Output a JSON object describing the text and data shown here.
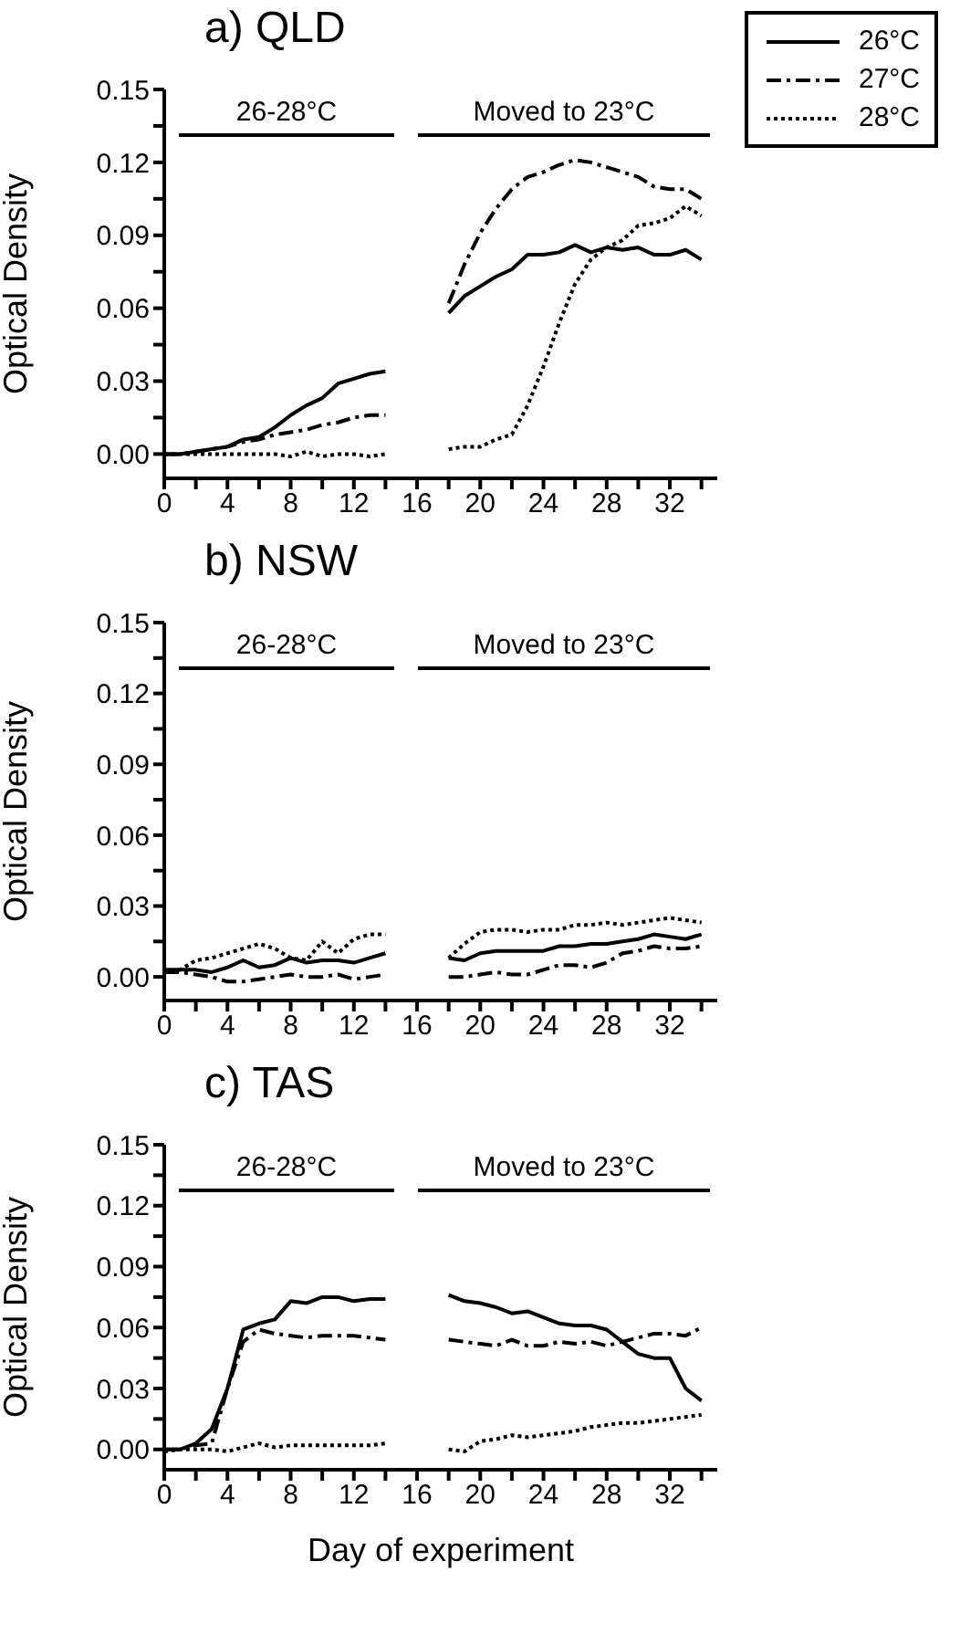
{
  "chart_data": [
    {
      "type": "line",
      "title": "a) QLD",
      "ylabel": "Optical Density",
      "legend": "top right",
      "xlim": [
        0,
        35
      ],
      "ylim": [
        -0.01,
        0.15
      ],
      "xticks": [
        0,
        {
          "value": 2,
          "label": null
        },
        4,
        {
          "value": 6,
          "label": null
        },
        8,
        {
          "value": 10,
          "label": null
        },
        12,
        {
          "value": 14,
          "label": null
        },
        16,
        {
          "value": 18,
          "label": null
        },
        20,
        {
          "value": 22,
          "label": null
        },
        24,
        {
          "value": 26,
          "label": null
        },
        28,
        {
          "value": 30,
          "label": null
        },
        32,
        {
          "value": 34,
          "label": null
        }
      ],
      "yticks": [
        {
          "value": 0,
          "label": "0.00"
        },
        {
          "value": 0.015,
          "label": null
        },
        {
          "value": 0.03,
          "label": "0.03"
        },
        {
          "value": 0.045,
          "label": null
        },
        {
          "value": 0.06,
          "label": "0.06"
        },
        {
          "value": 0.075,
          "label": null
        },
        {
          "value": 0.09,
          "label": "0.09"
        },
        {
          "value": 0.105,
          "label": null
        },
        {
          "value": 0.12,
          "label": "0.12"
        },
        {
          "value": 0.135,
          "label": null
        },
        {
          "value": 0.15,
          "label": "0.15"
        }
      ],
      "annotations": [
        "26-28°C",
        "Moved to 23°C"
      ],
      "x": [
        0,
        1,
        2,
        3,
        4,
        5,
        6,
        7,
        8,
        9,
        10,
        11,
        12,
        13,
        14,
        15,
        16,
        17,
        18,
        19,
        20,
        21,
        22,
        23,
        24,
        25,
        26,
        27,
        28,
        29,
        30,
        31,
        32,
        33,
        34
      ],
      "series": [
        {
          "name": "26°C",
          "color": "#000000",
          "line_style": "solid",
          "values": [
            0,
            0,
            0.001,
            0.002,
            0.003,
            0.006,
            0.007,
            0.011,
            0.016,
            0.02,
            0.023,
            0.029,
            0.031,
            0.033,
            0.034,
            null,
            null,
            null,
            0.058,
            0.065,
            0.069,
            0.073,
            0.076,
            0.082,
            0.082,
            0.083,
            0.086,
            0.083,
            0.085,
            0.084,
            0.085,
            0.082,
            0.082,
            0.084,
            0.08
          ]
        },
        {
          "name": "27°C",
          "color": "#000000",
          "line_style": "dashdot",
          "values": [
            0,
            0,
            0.001,
            0.002,
            0.003,
            0.005,
            0.006,
            0.008,
            0.009,
            0.01,
            0.012,
            0.013,
            0.015,
            0.016,
            0.016,
            null,
            null,
            null,
            0.062,
            0.078,
            0.091,
            0.101,
            0.109,
            0.114,
            0.116,
            0.119,
            0.121,
            0.12,
            0.118,
            0.116,
            0.114,
            0.11,
            0.109,
            0.109,
            0.105
          ]
        },
        {
          "name": "28°C",
          "color": "#000000",
          "line_style": "dotted",
          "values": [
            0,
            0,
            0,
            0,
            0,
            0,
            0,
            0,
            -0.001,
            0.001,
            -0.001,
            0,
            0,
            -0.001,
            0,
            null,
            null,
            null,
            0.002,
            0.003,
            0.003,
            0.006,
            0.008,
            0.02,
            0.036,
            0.054,
            0.07,
            0.08,
            0.085,
            0.088,
            0.094,
            0.095,
            0.097,
            0.102,
            0.098
          ]
        }
      ]
    },
    {
      "type": "line",
      "title": "b) NSW",
      "ylabel": "Optical Density",
      "xlim": [
        0,
        35
      ],
      "ylim": [
        -0.01,
        0.15
      ],
      "xticks": [
        0,
        {
          "value": 2,
          "label": null
        },
        4,
        {
          "value": 6,
          "label": null
        },
        8,
        {
          "value": 10,
          "label": null
        },
        12,
        {
          "value": 14,
          "label": null
        },
        16,
        {
          "value": 18,
          "label": null
        },
        20,
        {
          "value": 22,
          "label": null
        },
        24,
        {
          "value": 26,
          "label": null
        },
        28,
        {
          "value": 30,
          "label": null
        },
        32,
        {
          "value": 34,
          "label": null
        }
      ],
      "yticks": [
        {
          "value": 0,
          "label": "0.00"
        },
        {
          "value": 0.015,
          "label": null
        },
        {
          "value": 0.03,
          "label": "0.03"
        },
        {
          "value": 0.045,
          "label": null
        },
        {
          "value": 0.06,
          "label": "0.06"
        },
        {
          "value": 0.075,
          "label": null
        },
        {
          "value": 0.09,
          "label": "0.09"
        },
        {
          "value": 0.105,
          "label": null
        },
        {
          "value": 0.12,
          "label": "0.12"
        },
        {
          "value": 0.135,
          "label": null
        },
        {
          "value": 0.15,
          "label": "0.15"
        }
      ],
      "annotations": [
        "26-28°C",
        "Moved to 23°C"
      ],
      "x": [
        0,
        1,
        2,
        3,
        4,
        5,
        6,
        7,
        8,
        9,
        10,
        11,
        12,
        13,
        14,
        15,
        16,
        17,
        18,
        19,
        20,
        21,
        22,
        23,
        24,
        25,
        26,
        27,
        28,
        29,
        30,
        31,
        32,
        33,
        34
      ],
      "series": [
        {
          "color": "#000000",
          "line_style": "solid",
          "values": [
            0.003,
            0.003,
            0.003,
            0.002,
            0.004,
            0.007,
            0.004,
            0.005,
            0.008,
            0.006,
            0.007,
            0.007,
            0.006,
            0.008,
            0.01,
            null,
            null,
            null,
            0.008,
            0.007,
            0.01,
            0.011,
            0.011,
            0.011,
            0.011,
            0.013,
            0.013,
            0.014,
            0.014,
            0.015,
            0.016,
            0.018,
            0.017,
            0.016,
            0.018
          ]
        },
        {
          "color": "#000000",
          "line_style": "dashdot",
          "values": [
            0.002,
            0.002,
            0.001,
            0,
            -0.002,
            -0.002,
            -0.001,
            0,
            0.001,
            0,
            0,
            0.001,
            -0.001,
            0,
            0.001,
            null,
            null,
            null,
            0,
            0,
            0.001,
            0.002,
            0.001,
            0.001,
            0.003,
            0.005,
            0.005,
            0.004,
            0.006,
            0.01,
            0.011,
            0.013,
            0.012,
            0.012,
            0.013
          ]
        },
        {
          "color": "#000000",
          "line_style": "dotted",
          "values": [
            0.002,
            0.003,
            0.007,
            0.008,
            0.01,
            0.012,
            0.014,
            0.012,
            0.008,
            0.007,
            0.015,
            0.01,
            0.016,
            0.018,
            0.018,
            null,
            null,
            null,
            0.008,
            0.014,
            0.019,
            0.02,
            0.02,
            0.019,
            0.02,
            0.02,
            0.022,
            0.022,
            0.023,
            0.022,
            0.023,
            0.024,
            0.025,
            0.024,
            0.023
          ]
        }
      ]
    },
    {
      "type": "line",
      "title": "c) TAS",
      "xlabel": "Day of experiment",
      "ylabel": "Optical Density",
      "xlim": [
        0,
        35
      ],
      "ylim": [
        -0.01,
        0.15
      ],
      "xticks": [
        0,
        {
          "value": 2,
          "label": null
        },
        4,
        {
          "value": 6,
          "label": null
        },
        8,
        {
          "value": 10,
          "label": null
        },
        12,
        {
          "value": 14,
          "label": null
        },
        16,
        {
          "value": 18,
          "label": null
        },
        20,
        {
          "value": 22,
          "label": null
        },
        24,
        {
          "value": 26,
          "label": null
        },
        28,
        {
          "value": 30,
          "label": null
        },
        32,
        {
          "value": 34,
          "label": null
        }
      ],
      "yticks": [
        {
          "value": 0,
          "label": "0.00"
        },
        {
          "value": 0.015,
          "label": null
        },
        {
          "value": 0.03,
          "label": "0.03"
        },
        {
          "value": 0.045,
          "label": null
        },
        {
          "value": 0.06,
          "label": "0.06"
        },
        {
          "value": 0.075,
          "label": null
        },
        {
          "value": 0.09,
          "label": "0.09"
        },
        {
          "value": 0.105,
          "label": null
        },
        {
          "value": 0.12,
          "label": "0.12"
        },
        {
          "value": 0.135,
          "label": null
        },
        {
          "value": 0.15,
          "label": "0.15"
        }
      ],
      "annotations": [
        "26-28°C",
        "Moved to 23°C"
      ],
      "x": [
        0,
        1,
        2,
        3,
        4,
        5,
        6,
        7,
        8,
        9,
        10,
        11,
        12,
        13,
        14,
        15,
        16,
        17,
        18,
        19,
        20,
        21,
        22,
        23,
        24,
        25,
        26,
        27,
        28,
        29,
        30,
        31,
        32,
        33,
        34
      ],
      "series": [
        {
          "color": "#000000",
          "line_style": "solid",
          "values": [
            0,
            0,
            0.003,
            0.01,
            0.03,
            0.059,
            0.062,
            0.064,
            0.073,
            0.072,
            0.075,
            0.075,
            0.073,
            0.074,
            0.074,
            null,
            null,
            null,
            0.076,
            0.073,
            0.072,
            0.07,
            0.067,
            0.068,
            0.065,
            0.062,
            0.061,
            0.061,
            0.059,
            0.053,
            0.047,
            0.045,
            0.045,
            0.03,
            0.024
          ]
        },
        {
          "color": "#000000",
          "line_style": "dashdot",
          "values": [
            0,
            0,
            0.002,
            0.003,
            0.03,
            0.053,
            0.059,
            0.057,
            0.056,
            0.055,
            0.056,
            0.056,
            0.056,
            0.055,
            0.054,
            null,
            null,
            null,
            0.054,
            0.053,
            0.052,
            0.051,
            0.054,
            0.051,
            0.051,
            0.053,
            0.052,
            0.053,
            0.051,
            0.053,
            0.055,
            0.057,
            0.057,
            0.056,
            0.06
          ]
        },
        {
          "color": "#000000",
          "line_style": "dotted",
          "values": [
            -0.001,
            0,
            0,
            0,
            -0.001,
            0.001,
            0.003,
            0.001,
            0.002,
            0.002,
            0.002,
            0.002,
            0.002,
            0.002,
            0.003,
            null,
            null,
            null,
            0,
            -0.001,
            0.004,
            0.005,
            0.007,
            0.006,
            0.007,
            0.008,
            0.009,
            0.011,
            0.012,
            0.013,
            0.013,
            0.014,
            0.015,
            0.016,
            0.017
          ]
        }
      ]
    }
  ]
}
